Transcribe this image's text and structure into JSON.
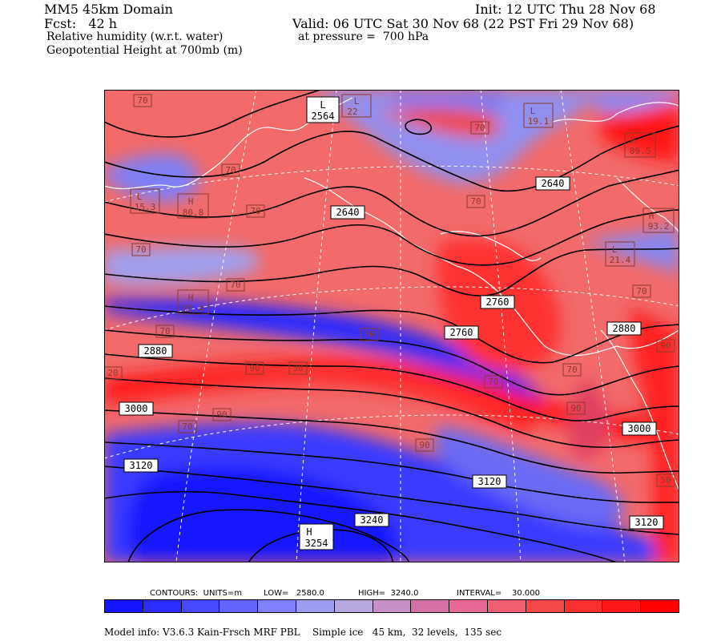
{
  "header": {
    "domain": "MM5 45km Domain",
    "forecast": "Fcst:   42 h",
    "init": "Init: 12 UTC Thu 28 Nov 68",
    "valid": "Valid: 06 UTC Sat 30 Nov 68 (22 PST Fri 29 Nov 68)",
    "field1": "Relative humidity (w.r.t. water)",
    "pressure": "at pressure =  700 hPa",
    "field2": "Geopotential Height at 700mb (m)"
  },
  "contour_info": {
    "units": "CONTOURS:  UNITS=m",
    "low": "LOW=   2580.0",
    "high": "HIGH=  3240.0",
    "interval": "INTERVAL=    30.000"
  },
  "model_info": "Model info: V3.6.3 Kain-Frsch MRF PBL    Simple ice   45 km,  32 levels,  135 sec",
  "colors": {
    "colorbar": [
      "#1414ff",
      "#2c2cff",
      "#4848ff",
      "#6464ff",
      "#8080ff",
      "#9c9cf0",
      "#b8a8e0",
      "#c890c8",
      "#d870a8",
      "#e86898",
      "#f06070",
      "#f44848",
      "#f83030",
      "#fc1818",
      "#ff0000"
    ],
    "height_contour": "#000000",
    "coastline": "#ffffff",
    "gridline": "#ffffff"
  },
  "height_labels": [
    "2564",
    "2640",
    "2640",
    "2760",
    "2760",
    "2880",
    "2880",
    "3000",
    "3000",
    "3120",
    "3120",
    "3120",
    "3240",
    "3254"
  ],
  "rh_labels": [
    "22",
    "70",
    "70",
    "70",
    "70",
    "70",
    "70",
    "70",
    "70",
    "70",
    "70",
    "70",
    "70",
    "70",
    "80.8",
    "80.4",
    "89.5",
    "93.2",
    "15.3",
    "19.1",
    "21.4",
    "40",
    "80",
    "90",
    "90",
    "90",
    "90",
    "90",
    "50",
    "20",
    "30"
  ],
  "centers": [
    {
      "type": "L",
      "value": "2564"
    },
    {
      "type": "L",
      "value": "22"
    },
    {
      "type": "L",
      "value": "15.3"
    },
    {
      "type": "H",
      "value": "80.8"
    },
    {
      "type": "H",
      "value": "80.4"
    },
    {
      "type": "L",
      "value": "19.1"
    },
    {
      "type": "H",
      "value": "89.5"
    },
    {
      "type": "H",
      "value": "93.2"
    },
    {
      "type": "L",
      "value": "21.4"
    },
    {
      "type": "H",
      "value": "3254"
    }
  ]
}
